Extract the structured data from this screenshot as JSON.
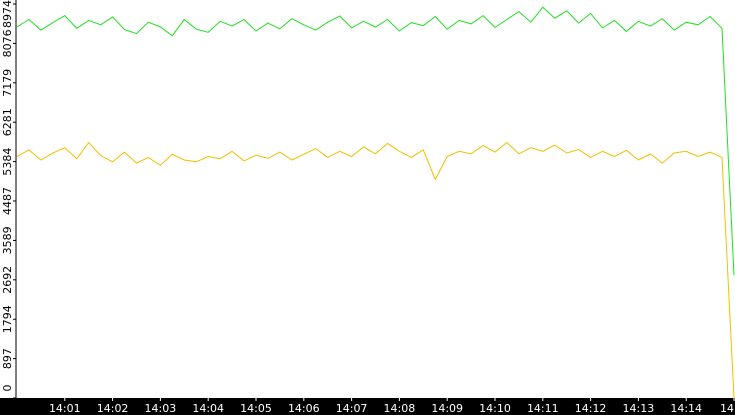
{
  "chart_data": {
    "type": "line",
    "x": [
      0,
      0.25,
      0.5,
      0.75,
      1,
      1.25,
      1.5,
      1.75,
      2,
      2.25,
      2.5,
      2.75,
      3,
      3.25,
      3.5,
      3.75,
      4,
      4.25,
      4.5,
      4.75,
      5,
      5.25,
      5.5,
      5.75,
      6,
      6.25,
      6.5,
      6.75,
      7,
      7.25,
      7.5,
      7.75,
      8,
      8.25,
      8.5,
      8.75,
      9,
      9.25,
      9.5,
      9.75,
      10,
      10.25,
      10.5,
      10.75,
      11,
      11.25,
      11.5,
      11.75,
      12,
      12.25,
      12.5,
      12.75,
      13,
      13.25,
      13.5,
      13.75,
      14,
      14.25,
      14.5,
      14.75,
      15
    ],
    "series": [
      {
        "color": "#22e022",
        "values": [
          8450,
          8620,
          8380,
          8550,
          8710,
          8420,
          8600,
          8500,
          8680,
          8390,
          8300,
          8560,
          8450,
          8250,
          8620,
          8400,
          8330,
          8580,
          8470,
          8620,
          8360,
          8540,
          8410,
          8640,
          8500,
          8380,
          8560,
          8700,
          8430,
          8580,
          8450,
          8620,
          8360,
          8550,
          8480,
          8690,
          8400,
          8600,
          8520,
          8710,
          8440,
          8620,
          8800,
          8560,
          8900,
          8650,
          8820,
          8540,
          8760,
          8430,
          8600,
          8350,
          8580,
          8470,
          8640,
          8380,
          8560,
          8500,
          8690,
          8420,
          2800
        ]
      },
      {
        "color": "#f0c000",
        "values": [
          5500,
          5650,
          5420,
          5580,
          5700,
          5450,
          5820,
          5520,
          5380,
          5600,
          5350,
          5480,
          5300,
          5550,
          5420,
          5380,
          5500,
          5450,
          5620,
          5400,
          5530,
          5460,
          5600,
          5420,
          5550,
          5680,
          5480,
          5620,
          5500,
          5720,
          5560,
          5800,
          5620,
          5480,
          5650,
          4980,
          5500,
          5620,
          5560,
          5750,
          5600,
          5820,
          5560,
          5700,
          5620,
          5760,
          5580,
          5660,
          5480,
          5620,
          5500,
          5640,
          5420,
          5560,
          5350,
          5580,
          5620,
          5500,
          5600,
          5480,
          0
        ]
      }
    ],
    "xlim": [
      0,
      15
    ],
    "xticks": [
      {
        "value": 1,
        "label": "14:01"
      },
      {
        "value": 2,
        "label": "14:02"
      },
      {
        "value": 3,
        "label": "14:03"
      },
      {
        "value": 4,
        "label": "14:04"
      },
      {
        "value": 5,
        "label": "14:05"
      },
      {
        "value": 6,
        "label": "14:06"
      },
      {
        "value": 7,
        "label": "14:07"
      },
      {
        "value": 8,
        "label": "14:08"
      },
      {
        "value": 9,
        "label": "14:09"
      },
      {
        "value": 10,
        "label": "14:10"
      },
      {
        "value": 11,
        "label": "14:11"
      },
      {
        "value": 12,
        "label": "14:12"
      },
      {
        "value": 13,
        "label": "14:13"
      },
      {
        "value": 14,
        "label": "14:14"
      },
      {
        "value": 15,
        "label": "14"
      }
    ],
    "ylim": [
      0,
      8974
    ],
    "yticks": [
      0,
      897,
      1794,
      2692,
      3589,
      4487,
      5384,
      6281,
      7179,
      8076,
      8974
    ]
  }
}
